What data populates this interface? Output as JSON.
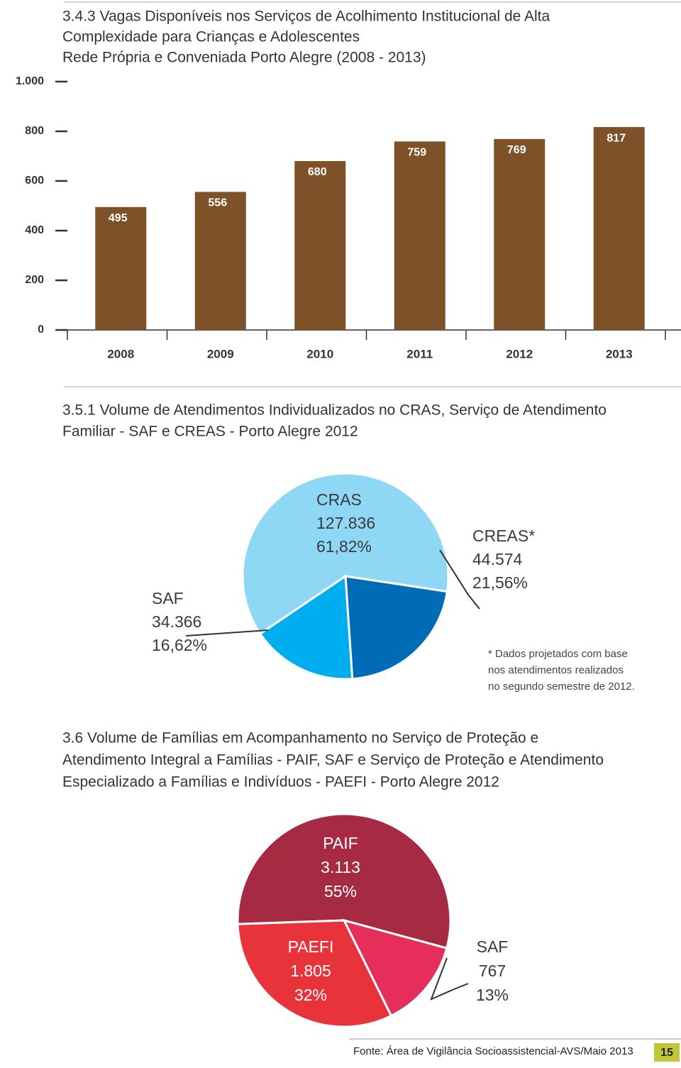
{
  "chart_data": [
    {
      "type": "bar",
      "title": [
        "3.4.3 Vagas Disponíveis nos Serviços de Acolhimento Institucional de Alta",
        "Complexidade para Crianças e Adolescentes",
        "Rede Própria e Conveniada Porto Alegre (2008 - 2013)"
      ],
      "categories": [
        "2008",
        "2009",
        "2010",
        "2011",
        "2012",
        "2013"
      ],
      "values": [
        495,
        556,
        680,
        759,
        769,
        817
      ],
      "color": "#7f5129",
      "ylim": [
        0,
        1000
      ],
      "yticks": [
        0,
        200,
        400,
        600,
        800,
        {
          "value": 1000,
          "label": "1.000"
        }
      ]
    },
    {
      "type": "pie",
      "title": [
        "3.5.1 Volume de Atendimentos Individualizados no CRAS, Serviço de Atendimento",
        "Familiar - SAF e CREAS - Porto Alegre 2012"
      ],
      "categories": [
        "CRAS",
        "CREAS*",
        "SAF"
      ],
      "values": [
        127836,
        44574,
        34366
      ],
      "value_labels": [
        "127.836",
        "44.574",
        "34.366"
      ],
      "percents": [
        61.82,
        21.56,
        16.62
      ],
      "percent_labels": [
        "61,82%",
        "21,56%",
        "16,62%"
      ],
      "colors": [
        "#8fd8f5",
        "#006bb6",
        "#00aeef"
      ],
      "note": [
        "* Dados projetados com base",
        "nos atendimentos realizados",
        "no segundo semestre de 2012."
      ]
    },
    {
      "type": "pie",
      "title": [
        "3.6 Volume de Famílias em Acompanhamento no Serviço de Proteção e",
        "Atendimento Integral a Famílias - PAIF, SAF e Serviço de Proteção e Atendimento",
        "Especializado a Famílias e Indivíduos - PAEFI - Porto Alegre 2012"
      ],
      "categories": [
        "PAIF",
        "SAF",
        "PAEFI"
      ],
      "values": [
        3113,
        767,
        1805
      ],
      "value_labels": [
        "3.113",
        "767",
        "1.805"
      ],
      "percents": [
        55,
        13,
        32
      ],
      "percent_labels": [
        "55%",
        "13%",
        "32%"
      ],
      "colors": [
        "#a52a42",
        "#e52e5a",
        "#e8333a"
      ]
    }
  ],
  "footer": {
    "source": "Fonte: Área de Vigilância Socioassistencial-AVS/Maio 2013",
    "page": "15"
  }
}
